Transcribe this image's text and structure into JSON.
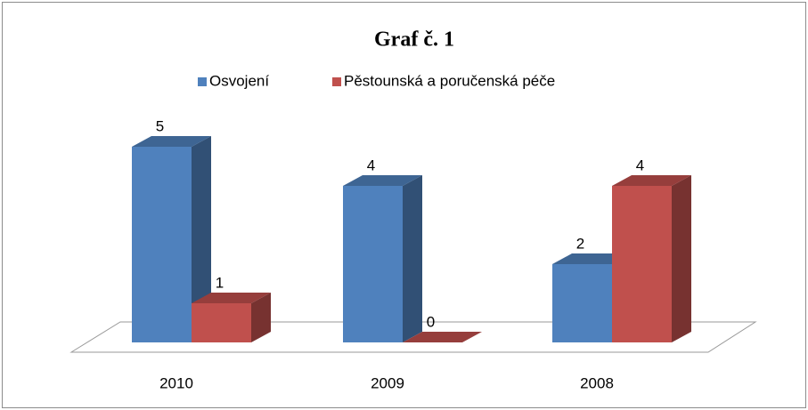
{
  "chart_data": {
    "type": "bar3d",
    "title": "Graf č. 1",
    "categories": [
      "2010",
      "2009",
      "2008"
    ],
    "series": [
      {
        "name": "Osvojení",
        "color": "#4f81bd",
        "values": [
          5,
          4,
          2
        ]
      },
      {
        "name": "Pěstounská a poručenská péče",
        "color": "#c0504d",
        "values": [
          1,
          0,
          4
        ]
      }
    ],
    "legend": "top"
  }
}
